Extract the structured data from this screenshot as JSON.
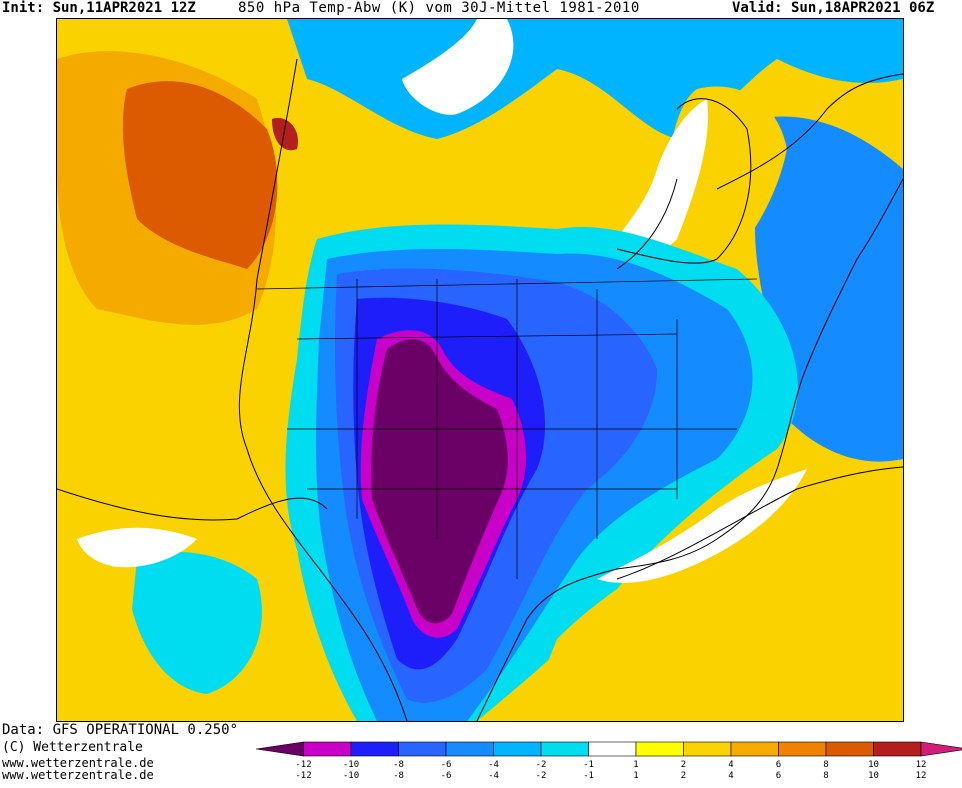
{
  "header": {
    "init": "Init: Sun,11APR2021 12Z",
    "title": "850 hPa Temp-Abw (K) vom 30J-Mittel 1981-2010",
    "valid": "Valid: Sun,18APR2021 06Z"
  },
  "footer": {
    "data": "Data: GFS OPERATIONAL 0.250°",
    "copyright": "(C) Wetterzentrale",
    "url1": "www.wetterzentrale.de",
    "url2": "www.wetterzentrale.de"
  },
  "colorbar": {
    "top_labels": [
      "-12",
      "-10",
      "-8",
      "-6",
      "-4",
      "-2",
      "-1",
      "1",
      "2",
      "4",
      "6",
      "8",
      "10",
      "12"
    ],
    "bottom_labels": [
      "-12",
      "-10",
      "-8",
      "-6",
      "-4",
      "-2",
      "-1",
      "1",
      "2",
      "4",
      "6",
      "8",
      "10",
      "12"
    ],
    "colors": [
      "#6b0066",
      "#c800c8",
      "#1e1efa",
      "#2864ff",
      "#148cff",
      "#00b4ff",
      "#00dcf0",
      "#ffffff",
      "#ffff00",
      "#fad200",
      "#f5aa00",
      "#f08200",
      "#dc5a00",
      "#b41e1e",
      "#d21e78"
    ]
  }
}
